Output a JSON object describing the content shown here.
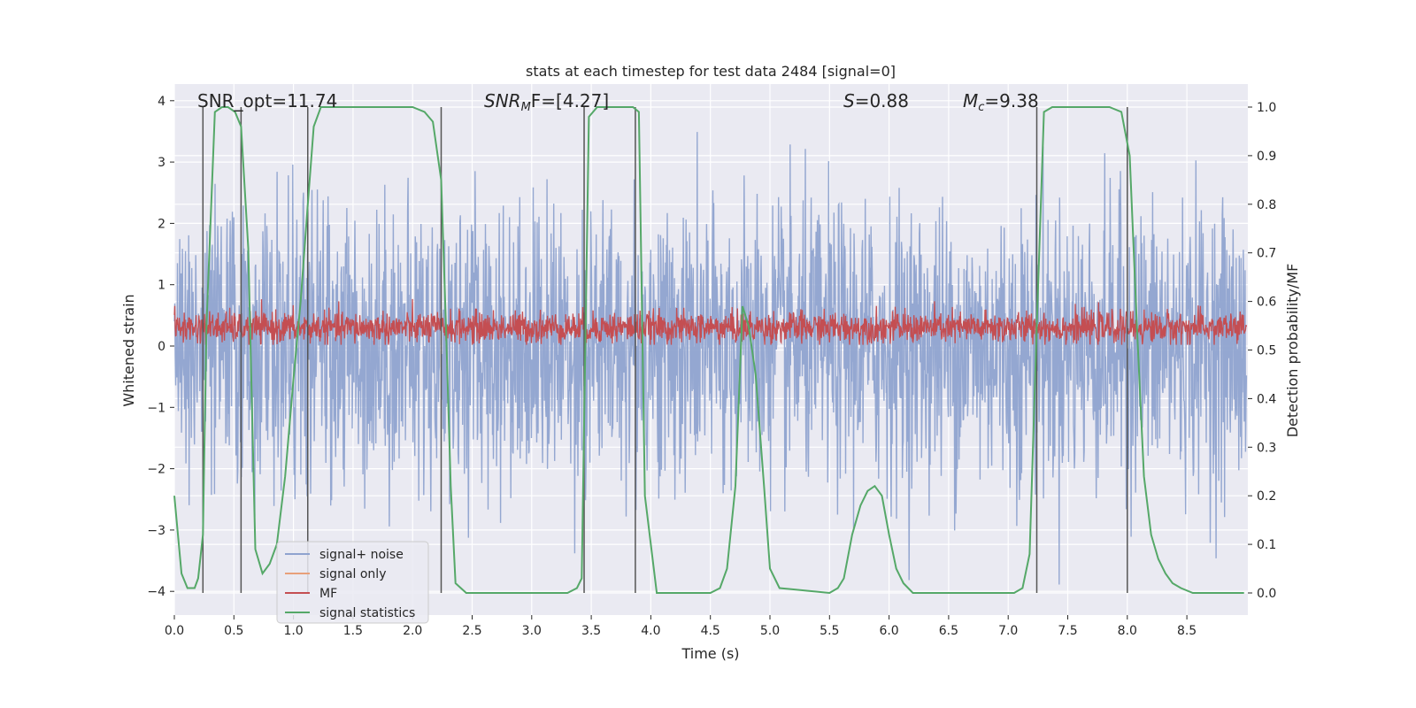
{
  "chart_data": {
    "type": "line",
    "title": "stats at each timestep for test data 2484 [signal=0]",
    "xlabel": "Time (s)",
    "ylabel": "Whitened strain",
    "y2label": "Detection probability/MF",
    "xlim": [
      0.0,
      9.0
    ],
    "ylim": [
      -4.2,
      4.2
    ],
    "y2lim": [
      -0.05,
      1.05
    ],
    "xticks": [
      "0.0",
      "0.5",
      "1.0",
      "1.5",
      "2.0",
      "2.5",
      "3.0",
      "3.5",
      "4.0",
      "4.5",
      "5.0",
      "5.5",
      "6.0",
      "6.5",
      "7.0",
      "7.5",
      "8.0",
      "8.5"
    ],
    "yticks": [
      "4",
      "3",
      "2",
      "1",
      "0",
      "−1",
      "−2",
      "−3",
      "−4"
    ],
    "y2ticks": [
      "1.0",
      "0.9",
      "0.8",
      "0.7",
      "0.6",
      "0.5",
      "0.4",
      "0.3",
      "0.2",
      "0.1",
      "0.0"
    ],
    "grid": true,
    "legend_position": "lower-left",
    "annotations": {
      "snr_opt": "SNR_opt=11.74",
      "snr_mf_sym": "SNR",
      "snr_mf_sub": "M",
      "snr_mf_rest": "F=[4.27]",
      "s_sym": "S",
      "s_rest": "=0.88",
      "mc_sym": "M",
      "mc_sub": "c",
      "mc_rest": "=9.38"
    },
    "series": [
      {
        "name": "signal+ noise",
        "color": "#8fa3cf",
        "axis": "left",
        "description_amplitude": 3.2
      },
      {
        "name": "signal only",
        "color": "#e8a07a",
        "axis": "left",
        "values": []
      },
      {
        "name": "MF",
        "color": "#c44e52",
        "axis": "left",
        "center": 0.3,
        "amplitude": 0.45
      },
      {
        "name": "signal statistics",
        "color": "#55a868",
        "axis": "right",
        "x": [
          0.0,
          0.06,
          0.11,
          0.17,
          0.2,
          0.24,
          0.27,
          0.34,
          0.4,
          0.45,
          0.51,
          0.56,
          0.62,
          0.68,
          0.74,
          0.8,
          0.86,
          0.93,
          1.0,
          1.06,
          1.12,
          1.17,
          1.23,
          1.29,
          1.35,
          2.0,
          2.1,
          2.17,
          2.24,
          2.28,
          2.32,
          2.36,
          2.45,
          2.55,
          3.3,
          3.38,
          3.42,
          3.48,
          3.55,
          3.85,
          3.9,
          3.95,
          4.05,
          4.5,
          4.58,
          4.64,
          4.71,
          4.77,
          4.82,
          4.88,
          4.95,
          5.0,
          5.08,
          5.5,
          5.57,
          5.62,
          5.69,
          5.76,
          5.82,
          5.88,
          5.94,
          6.0,
          6.06,
          6.12,
          6.2,
          6.3,
          7.05,
          7.12,
          7.18,
          7.24,
          7.3,
          7.37,
          7.45,
          7.85,
          7.95,
          8.02,
          8.08,
          8.14,
          8.2,
          8.26,
          8.32,
          8.38,
          8.45,
          8.55,
          8.98
        ],
        "values": [
          0.2,
          0.04,
          0.01,
          0.01,
          0.03,
          0.12,
          0.55,
          0.99,
          1.0,
          1.0,
          0.99,
          0.96,
          0.71,
          0.09,
          0.04,
          0.06,
          0.1,
          0.24,
          0.44,
          0.6,
          0.8,
          0.96,
          1.0,
          1.0,
          1.0,
          1.0,
          0.99,
          0.97,
          0.85,
          0.55,
          0.22,
          0.02,
          0.0,
          0.0,
          0.0,
          0.01,
          0.03,
          0.98,
          1.0,
          1.0,
          0.99,
          0.2,
          0.0,
          0.0,
          0.01,
          0.05,
          0.22,
          0.59,
          0.55,
          0.45,
          0.22,
          0.05,
          0.01,
          0.0,
          0.01,
          0.03,
          0.12,
          0.18,
          0.21,
          0.22,
          0.2,
          0.12,
          0.05,
          0.02,
          0.0,
          0.0,
          0.0,
          0.01,
          0.08,
          0.55,
          0.99,
          1.0,
          1.0,
          1.0,
          0.99,
          0.9,
          0.55,
          0.24,
          0.12,
          0.07,
          0.04,
          0.02,
          0.01,
          0.0,
          0.0
        ]
      }
    ],
    "vlines_x": [
      0.24,
      0.56,
      1.12,
      2.24,
      3.44,
      3.87,
      7.24,
      8.0
    ]
  }
}
